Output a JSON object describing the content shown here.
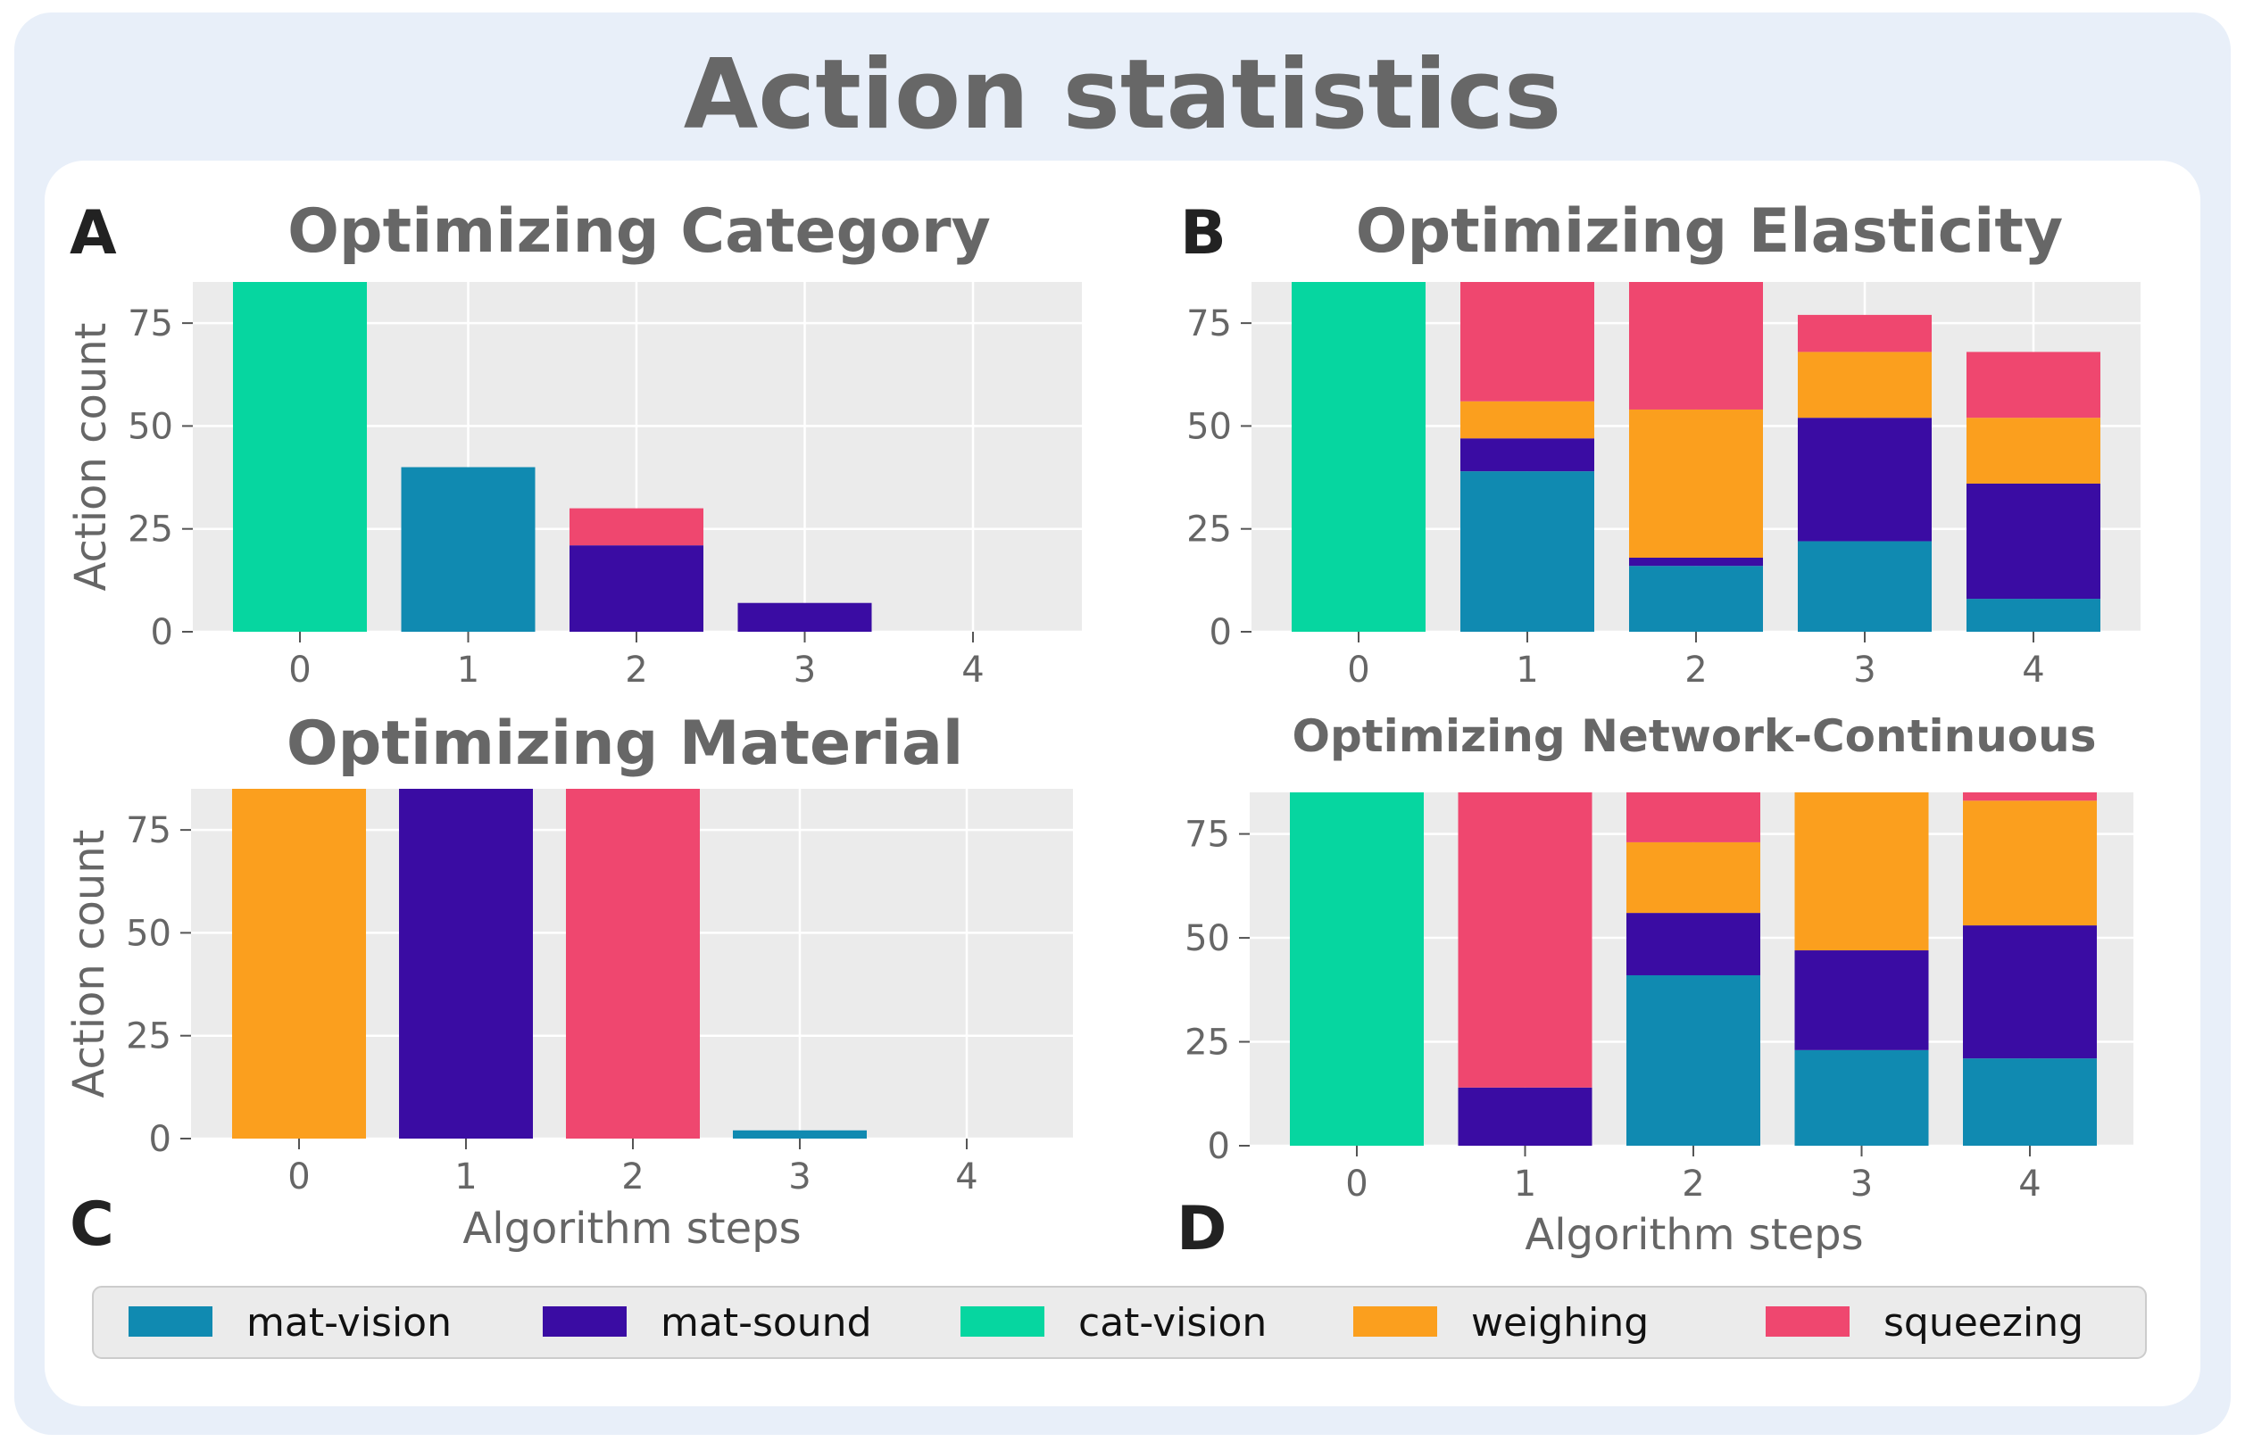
{
  "figure_title": "Action statistics",
  "colors": {
    "mat-vision": "#108ab1",
    "mat-sound": "#3a0ca3",
    "cat-vision": "#06d6a0",
    "weighing": "#fb9f1e",
    "squeezing": "#ef476f",
    "plot_bg": "#ebebeb",
    "grid": "#ffffff"
  },
  "legend": {
    "items": [
      {
        "key": "mat-vision",
        "label": "mat-vision"
      },
      {
        "key": "mat-sound",
        "label": "mat-sound"
      },
      {
        "key": "cat-vision",
        "label": "cat-vision"
      },
      {
        "key": "weighing",
        "label": "weighing"
      },
      {
        "key": "squeezing",
        "label": "squeezing"
      }
    ]
  },
  "chart_data": [
    {
      "id": "A",
      "panel_letter": "A",
      "type": "bar",
      "stacked": true,
      "title": "Optimizing Category",
      "xlabel": "",
      "ylabel": "Action count",
      "categories": [
        "0",
        "1",
        "2",
        "3",
        "4"
      ],
      "ylim": [
        0,
        85
      ],
      "yticks": [
        0,
        25,
        50,
        75
      ],
      "series": [
        {
          "name": "mat-vision",
          "values": [
            0,
            40,
            0,
            0,
            0
          ]
        },
        {
          "name": "mat-sound",
          "values": [
            0,
            0,
            21,
            7,
            0
          ]
        },
        {
          "name": "cat-vision",
          "values": [
            85,
            0,
            0,
            0,
            0
          ]
        },
        {
          "name": "weighing",
          "values": [
            0,
            0,
            0,
            0,
            0
          ]
        },
        {
          "name": "squeezing",
          "values": [
            0,
            0,
            9,
            0,
            0
          ]
        }
      ]
    },
    {
      "id": "B",
      "panel_letter": "B",
      "type": "bar",
      "stacked": true,
      "title": "Optimizing Elasticity",
      "xlabel": "",
      "ylabel": "",
      "categories": [
        "0",
        "1",
        "2",
        "3",
        "4"
      ],
      "ylim": [
        0,
        85
      ],
      "yticks": [
        0,
        25,
        50,
        75
      ],
      "series": [
        {
          "name": "mat-vision",
          "values": [
            0,
            39,
            16,
            22,
            8
          ]
        },
        {
          "name": "mat-sound",
          "values": [
            0,
            8,
            2,
            30,
            28
          ]
        },
        {
          "name": "cat-vision",
          "values": [
            85,
            0,
            0,
            0,
            0
          ]
        },
        {
          "name": "weighing",
          "values": [
            0,
            9,
            36,
            16,
            16
          ]
        },
        {
          "name": "squeezing",
          "values": [
            0,
            29,
            31,
            9,
            16
          ]
        }
      ]
    },
    {
      "id": "C",
      "panel_letter": "C",
      "type": "bar",
      "stacked": true,
      "title": "Optimizing Material",
      "xlabel": "Algorithm steps",
      "ylabel": "Action count",
      "categories": [
        "0",
        "1",
        "2",
        "3",
        "4"
      ],
      "ylim": [
        0,
        85
      ],
      "yticks": [
        0,
        25,
        50,
        75
      ],
      "series": [
        {
          "name": "mat-vision",
          "values": [
            0,
            0,
            0,
            2,
            0
          ]
        },
        {
          "name": "mat-sound",
          "values": [
            0,
            85,
            0,
            0,
            0
          ]
        },
        {
          "name": "cat-vision",
          "values": [
            0,
            0,
            0,
            0,
            0
          ]
        },
        {
          "name": "weighing",
          "values": [
            85,
            0,
            0,
            0,
            0
          ]
        },
        {
          "name": "squeezing",
          "values": [
            0,
            0,
            85,
            0,
            0
          ]
        }
      ]
    },
    {
      "id": "D",
      "panel_letter": "D",
      "type": "bar",
      "stacked": true,
      "title": "Optimizing Network-Continuous",
      "xlabel": "Algorithm steps",
      "ylabel": "",
      "categories": [
        "0",
        "1",
        "2",
        "3",
        "4"
      ],
      "ylim": [
        0,
        85
      ],
      "yticks": [
        0,
        25,
        50,
        75
      ],
      "series": [
        {
          "name": "mat-vision",
          "values": [
            0,
            0,
            41,
            23,
            21
          ]
        },
        {
          "name": "mat-sound",
          "values": [
            0,
            14,
            15,
            24,
            32
          ]
        },
        {
          "name": "cat-vision",
          "values": [
            85,
            0,
            0,
            0,
            0
          ]
        },
        {
          "name": "weighing",
          "values": [
            0,
            0,
            17,
            38,
            30
          ]
        },
        {
          "name": "squeezing",
          "values": [
            0,
            71,
            12,
            0,
            2
          ]
        }
      ]
    }
  ]
}
